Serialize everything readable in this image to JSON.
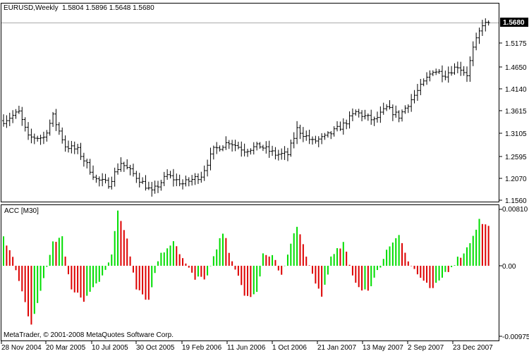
{
  "main_window": {
    "symbol_header": "EURUSD,Weekly",
    "ohlc": "1.5804 1.5896 1.5648 1.5680",
    "current_price_tag": "1.5680",
    "price_scale": [
      "1.5175",
      "1.4650",
      "1.4140",
      "1.3615",
      "1.3105",
      "1.2595",
      "1.2070",
      "1.1560"
    ],
    "bar_color": "#000000"
  },
  "indicator_window": {
    "title": "ACC [M30]",
    "scale": [
      "0.00810",
      "0.00",
      "-0.00975"
    ],
    "colors": {
      "up": "#00dd00",
      "down": "#dd0000"
    }
  },
  "time_axis": {
    "labels": [
      "28 Nov 2004",
      "20 Mar 2005",
      "10 Jul 2005",
      "30 Oct 2005",
      "19 Feb 2006",
      "11 Jun 2006",
      "1 Oct 2006",
      "21 Jan 2007",
      "13 May 2007",
      "2 Sep 2007",
      "23 Dec 2007"
    ]
  },
  "footer": {
    "copyright": "MetaTrader, © 2001-2008 MetaQuotes Software Corp."
  },
  "chart_data": {
    "type": "ohlc",
    "ylim": [
      1.156,
      1.5896
    ],
    "price_keypoints": [
      [
        0,
        1.34
      ],
      [
        5,
        1.36
      ],
      [
        8,
        1.3
      ],
      [
        13,
        1.3
      ],
      [
        16,
        1.35
      ],
      [
        20,
        1.28
      ],
      [
        24,
        1.27
      ],
      [
        30,
        1.2
      ],
      [
        34,
        1.19
      ],
      [
        38,
        1.24
      ],
      [
        44,
        1.2
      ],
      [
        48,
        1.17
      ],
      [
        53,
        1.21
      ],
      [
        58,
        1.19
      ],
      [
        64,
        1.21
      ],
      [
        68,
        1.27
      ],
      [
        73,
        1.29
      ],
      [
        78,
        1.27
      ],
      [
        83,
        1.28
      ],
      [
        88,
        1.26
      ],
      [
        92,
        1.26
      ],
      [
        95,
        1.32
      ],
      [
        100,
        1.29
      ],
      [
        104,
        1.3
      ],
      [
        110,
        1.33
      ],
      [
        114,
        1.36
      ],
      [
        120,
        1.34
      ],
      [
        124,
        1.37
      ],
      [
        128,
        1.35
      ],
      [
        134,
        1.41
      ],
      [
        139,
        1.46
      ],
      [
        143,
        1.45
      ],
      [
        147,
        1.47
      ],
      [
        150,
        1.45
      ],
      [
        152,
        1.51
      ],
      [
        155,
        1.57
      ],
      [
        157,
        1.568
      ]
    ],
    "acc_keypoints": [
      [
        0,
        0.0045
      ],
      [
        3,
        0.001
      ],
      [
        5,
        -0.0025
      ],
      [
        9,
        -0.0085
      ],
      [
        13,
        -0.002
      ],
      [
        16,
        0.0035
      ],
      [
        19,
        0.004
      ],
      [
        22,
        -0.0035
      ],
      [
        26,
        -0.005
      ],
      [
        31,
        -0.002
      ],
      [
        35,
        0.0015
      ],
      [
        37,
        0.0078
      ],
      [
        40,
        0.004
      ],
      [
        43,
        -0.003
      ],
      [
        47,
        -0.005
      ],
      [
        50,
        0.001
      ],
      [
        55,
        0.0038
      ],
      [
        58,
        0.001
      ],
      [
        62,
        -0.002
      ],
      [
        66,
        -0.0015
      ],
      [
        71,
        0.0048
      ],
      [
        74,
        0.001
      ],
      [
        78,
        -0.0045
      ],
      [
        82,
        -0.004
      ],
      [
        84,
        0.0015
      ],
      [
        88,
        0.001
      ],
      [
        90,
        -0.0015
      ],
      [
        95,
        0.006
      ],
      [
        98,
        0.001
      ],
      [
        103,
        -0.0045
      ],
      [
        106,
        0.001
      ],
      [
        110,
        0.0032
      ],
      [
        113,
        -0.0015
      ],
      [
        116,
        -0.0035
      ],
      [
        119,
        -0.003
      ],
      [
        124,
        0.0022
      ],
      [
        128,
        0.0048
      ],
      [
        131,
        0.0005
      ],
      [
        133,
        -0.0005
      ],
      [
        136,
        -0.0025
      ],
      [
        139,
        -0.0035
      ],
      [
        143,
        -0.001
      ],
      [
        147,
        0.001
      ],
      [
        150,
        0.0025
      ],
      [
        154,
        0.0065
      ],
      [
        157,
        0.0055
      ]
    ]
  }
}
